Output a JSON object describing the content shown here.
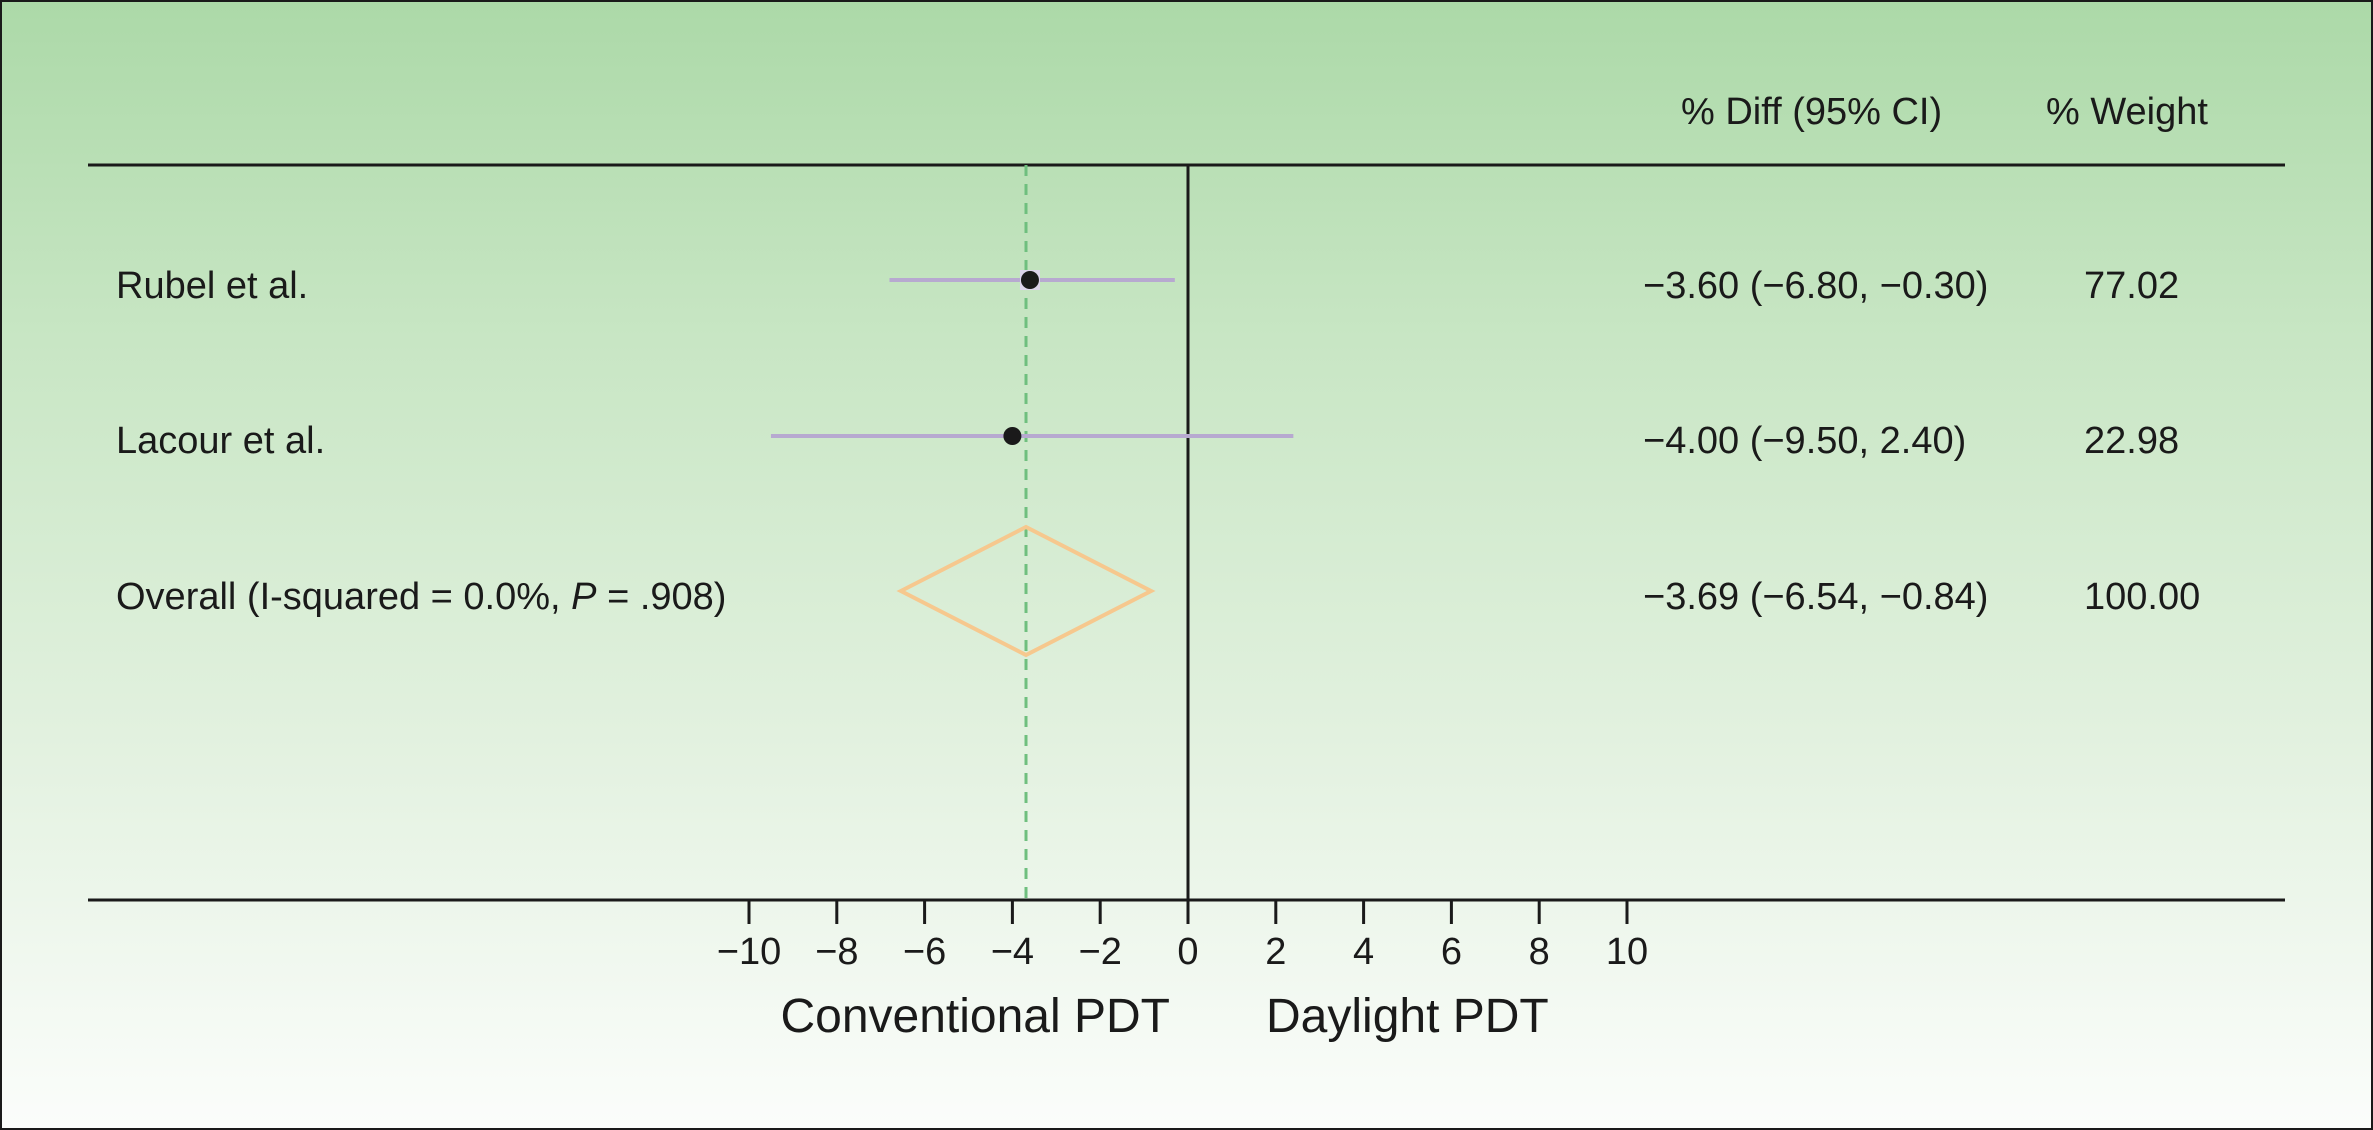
{
  "chart_data": {
    "type": "forest",
    "columns": {
      "diff_header": "% Diff (95% CI)",
      "weight_header": "% Weight"
    },
    "rows": [
      {
        "label": "Rubel et al.",
        "estimate": -3.6,
        "ci": [
          -6.8,
          -0.3
        ],
        "diff_text": "−3.60 (−6.80, −0.30)",
        "weight_text": "77.02",
        "weight": 77.02,
        "kind": "study"
      },
      {
        "label": "Lacour et al.",
        "estimate": -4.0,
        "ci": [
          -9.5,
          2.4
        ],
        "diff_text": "−4.00 (−9.50, 2.40)",
        "weight_text": "22.98",
        "weight": 22.98,
        "kind": "study"
      }
    ],
    "overall": {
      "label_prefix": "Overall (I-squared = 0.0%, ",
      "label_p": "P",
      "label_suffix": " = .908)",
      "estimate": -3.69,
      "ci": [
        -6.54,
        -0.84
      ],
      "diff_text": "−3.69 (−6.54, −0.84)",
      "weight_text": "100.00",
      "weight": 100.0
    },
    "x_ticks": [
      {
        "value": -10,
        "label": "−10"
      },
      {
        "value": -8,
        "label": "−8"
      },
      {
        "value": -6,
        "label": "−6"
      },
      {
        "value": -4,
        "label": "−4"
      },
      {
        "value": -2,
        "label": "−2"
      },
      {
        "value": 0,
        "label": "0"
      },
      {
        "value": 2,
        "label": "2"
      },
      {
        "value": 4,
        "label": "4"
      },
      {
        "value": 6,
        "label": "6"
      },
      {
        "value": 8,
        "label": "8"
      },
      {
        "value": 10,
        "label": "10"
      }
    ],
    "xlim": [
      -10,
      10
    ],
    "x_left_label": "Conventional PDT",
    "x_right_label": "Daylight PDT",
    "null_line": 0,
    "colors": {
      "ci_line": "#b7a9d0",
      "point": "#1a1a1a",
      "diamond": "#f6c88e",
      "reference_line": "#6fbf7e",
      "axis": "#1a1a1a"
    }
  }
}
